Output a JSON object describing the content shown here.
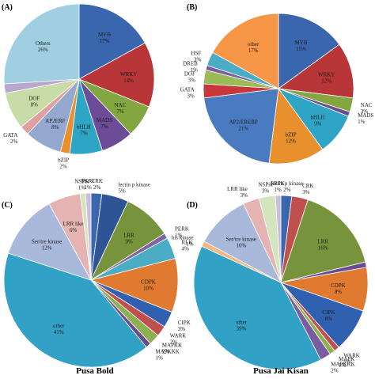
{
  "chart_data": [
    {
      "type": "pie",
      "panel": "(A)",
      "caption": "",
      "slices": [
        {
          "label": "MYB",
          "value": 17,
          "color": "#3a66ad"
        },
        {
          "label": "WRKY",
          "value": 14,
          "color": "#b83638"
        },
        {
          "label": "NAC",
          "value": 7,
          "color": "#84a640"
        },
        {
          "label": "MADS",
          "value": 7,
          "color": "#6c4c96"
        },
        {
          "label": "bHLH",
          "value": 7,
          "color": "#2ea5c4"
        },
        {
          "label": "bZIP",
          "value": 2,
          "color": "#e8902e"
        },
        {
          "label": "AP2ERF",
          "value": 8,
          "color": "#94a8d0"
        },
        {
          "label": "GATA",
          "value": 2,
          "color": "#e0a0a0"
        },
        {
          "label": "DOF",
          "value": 8,
          "color": "#c8dca8"
        },
        {
          "label": "F",
          "value": 2,
          "color": "#b9a7d2"
        },
        {
          "label": "Others",
          "value": 26,
          "color": "#9fcfe0"
        }
      ]
    },
    {
      "type": "pie",
      "panel": "(B)",
      "caption": "",
      "slices": [
        {
          "label": "MYB",
          "value": 15,
          "color": "#3a66ad"
        },
        {
          "label": "WRKY",
          "value": 12,
          "color": "#b83638"
        },
        {
          "label": "NAC",
          "value": 3,
          "color": "#84a640"
        },
        {
          "label": "MADS",
          "value": 1,
          "color": "#6c4c96"
        },
        {
          "label": "bHLH",
          "value": 9,
          "color": "#2ea5c4"
        },
        {
          "label": "bZIP",
          "value": 12,
          "color": "#e8902e"
        },
        {
          "label": "AP2/EREBP",
          "value": 21,
          "color": "#4a7bc0"
        },
        {
          "label": "GATA",
          "value": 3,
          "color": "#c8383a"
        },
        {
          "label": "DOF",
          "value": 3,
          "color": "#9bbb59"
        },
        {
          "label": "DREB",
          "value": 1,
          "color": "#7a5ca0"
        },
        {
          "label": "HSF",
          "value": 3,
          "color": "#4bacc6"
        },
        {
          "label": "other",
          "value": 17,
          "color": "#f79646"
        }
      ]
    },
    {
      "type": "pie",
      "panel": "(C)",
      "caption": "Pusa Bold",
      "slices": [
        {
          "label": "CRK",
          "value": 2,
          "color": "#3a66ad"
        },
        {
          "label": "lectin p kinase",
          "value": 5,
          "color": "#2f5496"
        },
        {
          "label": "LRR",
          "value": 9,
          "color": "#77933c"
        },
        {
          "label": "PERK",
          "value": 1,
          "color": "#8064a2"
        },
        {
          "label": "RLK",
          "value": 4,
          "color": "#4bacc6"
        },
        {
          "label": "CDPK",
          "value": 10,
          "color": "#e07a30"
        },
        {
          "label": "CIPK",
          "value": 3,
          "color": "#3060b0"
        },
        {
          "label": "WARK",
          "value": 2,
          "color": "#c0504d"
        },
        {
          "label": "MAPKK",
          "value": 2,
          "color": "#8db050"
        },
        {
          "label": "MAPKKK",
          "value": 1,
          "color": "#6a4a90"
        },
        {
          "label": "other",
          "value": 41,
          "color": "#31a2c6"
        },
        {
          "label": "Ser/tre kinase",
          "value": 12,
          "color": "#a8b9dc"
        },
        {
          "label": "LRR like",
          "value": 6,
          "color": "#e6b3b3"
        },
        {
          "label": "NSPik",
          "value": 1,
          "color": "#d4e4bc"
        },
        {
          "label": "SKR1",
          "value": 1,
          "color": "#c9bedc"
        }
      ]
    },
    {
      "type": "pie",
      "panel": "(D)",
      "caption": "Pusa Jai Kisan",
      "slices": [
        {
          "label": "lectin p kinase",
          "value": 2,
          "color": "#3a66ad"
        },
        {
          "label": "CRK",
          "value": 3,
          "color": "#c0504d"
        },
        {
          "label": "LRR",
          "value": 16,
          "color": "#77933c"
        },
        {
          "label": "RLK",
          "value": 1,
          "color": "#6a4a90"
        },
        {
          "label": "CDPK",
          "value": 8,
          "color": "#e07a30"
        },
        {
          "label": "CIPK",
          "value": 8,
          "color": "#3060b0"
        },
        {
          "label": "WARK",
          "value": 1,
          "color": "#c0504d"
        },
        {
          "label": "MAPK",
          "value": 1,
          "color": "#8db050"
        },
        {
          "label": "MAPKKK",
          "value": 2,
          "color": "#7a5ca0"
        },
        {
          "label": "other",
          "value": 39,
          "color": "#31a2c6"
        },
        {
          "label": "his kinase",
          "value": 1,
          "color": "#f2b880"
        },
        {
          "label": "Ser/tre kinase",
          "value": 10,
          "color": "#a8b9dc"
        },
        {
          "label": "LRR like",
          "value": 3,
          "color": "#e6b3b3"
        },
        {
          "label": "NSPik",
          "value": 3,
          "color": "#d4e4bc"
        },
        {
          "label": "SRPK",
          "value": 1,
          "color": "#c9bedc"
        }
      ]
    }
  ]
}
